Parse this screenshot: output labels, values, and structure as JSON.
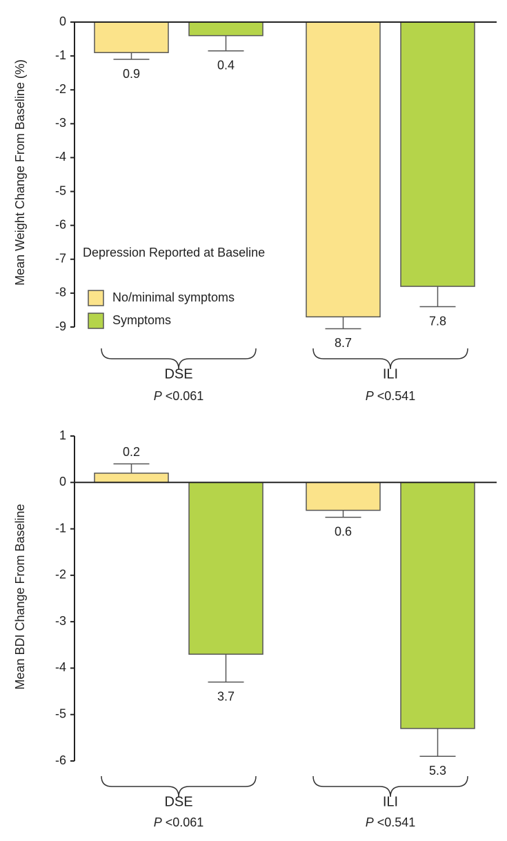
{
  "legend": {
    "title": "Depression Reported at Baseline",
    "entries": [
      {
        "name": "No/minimal symptoms",
        "color": "#fbe38a"
      },
      {
        "name": "Symptoms",
        "color": "#b5d44a"
      }
    ]
  },
  "chart_data": [
    {
      "type": "bar",
      "y_label": "Mean Weight Change From Baseline (%)",
      "categories": [
        "DSE",
        "ILI"
      ],
      "p_label": "P",
      "p_values": [
        "<0.061",
        "<0.541"
      ],
      "ylim": [
        -9,
        0
      ],
      "yticks": [
        0,
        -1,
        -2,
        -3,
        -4,
        -5,
        -6,
        -7,
        -8,
        -9
      ],
      "series": [
        {
          "name": "No/minimal symptoms",
          "color": "#fbe38a",
          "values": [
            -0.9,
            -8.7
          ],
          "errors": [
            0.2,
            0.35
          ],
          "value_labels": [
            "0.9",
            "8.7"
          ]
        },
        {
          "name": "Symptoms",
          "color": "#b5d44a",
          "values": [
            -0.4,
            -7.8
          ],
          "errors": [
            0.45,
            0.6
          ],
          "value_labels": [
            "0.4",
            "7.8"
          ]
        }
      ]
    },
    {
      "type": "bar",
      "y_label": "Mean BDI Change From Baseline",
      "categories": [
        "DSE",
        "ILI"
      ],
      "p_label": "P",
      "p_values": [
        "<0.061",
        "<0.541"
      ],
      "ylim": [
        -6,
        1
      ],
      "yticks": [
        1,
        0,
        -1,
        -2,
        -3,
        -4,
        -5,
        -6
      ],
      "series": [
        {
          "color": "#fbe38a",
          "values": [
            0.2,
            -0.6
          ],
          "errors": [
            0.2,
            0.15
          ],
          "value_labels": [
            "0.2",
            "0.6"
          ]
        },
        {
          "color": "#b5d44a",
          "values": [
            -3.7,
            -5.3
          ],
          "errors": [
            0.6,
            0.6
          ],
          "value_labels": [
            "3.7",
            "5.3"
          ]
        }
      ]
    }
  ]
}
